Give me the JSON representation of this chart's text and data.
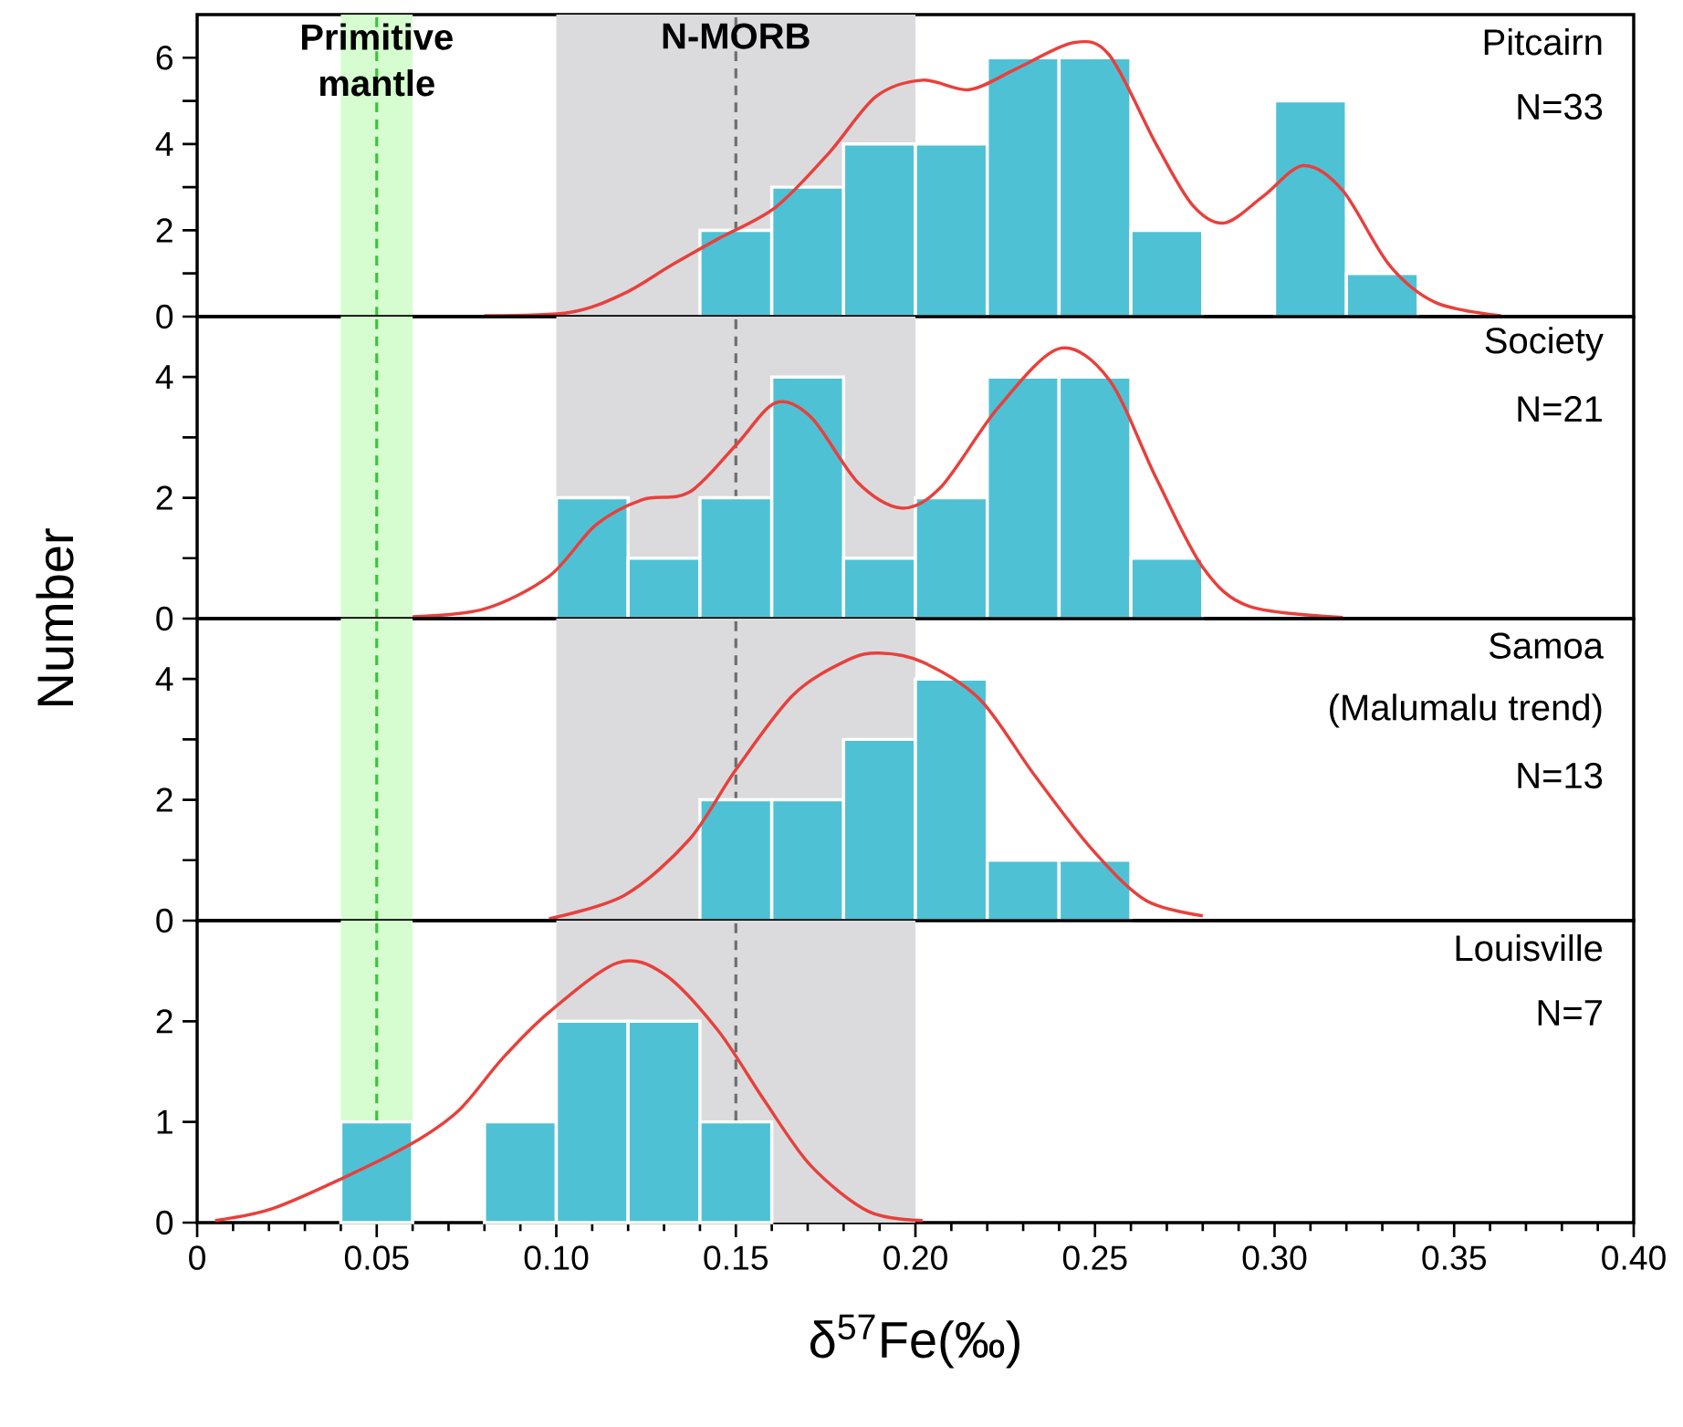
{
  "chart_data": [
    {
      "type": "histogram",
      "xlim": [
        0,
        0.4
      ],
      "ylim": [
        0,
        7
      ],
      "yticks": [
        0,
        {
          "value": 1,
          "label": null
        },
        2,
        {
          "value": 3,
          "label": null
        },
        4,
        {
          "value": 5,
          "label": null
        },
        6
      ],
      "tick_labels": "y",
      "series": [
        {
          "color": "#4fc1d5",
          "bins": [
            0.14,
            0.16,
            0.18,
            0.2,
            0.22,
            0.24,
            0.26,
            0.28,
            0.3,
            0.32,
            0.34
          ],
          "values": [
            2,
            3,
            4,
            4,
            6,
            6,
            2,
            0,
            5,
            1
          ]
        },
        {
          "type": "line",
          "color": "#e8403c",
          "line_style": "solid",
          "x": [
            0.08,
            0.104,
            0.119,
            0.132,
            0.145,
            0.161,
            0.176,
            0.189,
            0.202,
            0.215,
            0.228,
            0.244,
            0.254,
            0.267,
            0.277,
            0.286,
            0.297,
            0.308,
            0.319,
            0.332,
            0.345,
            0.363
          ],
          "values": [
            0.02,
            0.1,
            0.54,
            1.19,
            1.8,
            2.53,
            3.8,
            5.1,
            5.48,
            5.26,
            5.74,
            6.35,
            6.06,
            4.0,
            2.6,
            2.17,
            2.8,
            3.5,
            2.92,
            1.19,
            0.32,
            0.02
          ]
        }
      ],
      "bands": [
        {
          "axis": "x",
          "from": 0.04,
          "to": 0.06,
          "color": "#d6fdd0",
          "label": "Primitive mantle"
        },
        {
          "axis": "x",
          "from": 0.1,
          "to": 0.2,
          "color": "#dbdbdd",
          "label": "N-MORB"
        }
      ],
      "ref_lines": [
        {
          "axis": "x",
          "value": 0.05,
          "color": "#3cc43c",
          "line_style": "dashed"
        },
        {
          "axis": "x",
          "value": 0.15,
          "color": "#6e6e6e",
          "line_style": "dashed"
        }
      ],
      "annotations": [
        "Pitcairn",
        "N=33"
      ]
    },
    {
      "type": "histogram",
      "xlim": [
        0,
        0.4
      ],
      "ylim": [
        0,
        5
      ],
      "yticks": [
        0,
        {
          "value": 1,
          "label": null
        },
        2,
        {
          "value": 3,
          "label": null
        },
        4
      ],
      "tick_labels": "y",
      "ylabel": "Number",
      "series": [
        {
          "color": "#4fc1d5",
          "bins": [
            0.1,
            0.12,
            0.14,
            0.16,
            0.18,
            0.2,
            0.22,
            0.24,
            0.26,
            0.28
          ],
          "values": [
            2,
            1,
            2,
            4,
            1,
            2,
            4,
            4,
            1
          ]
        },
        {
          "type": "line",
          "color": "#e8403c",
          "line_style": "solid",
          "x": [
            0.06,
            0.08,
            0.098,
            0.111,
            0.124,
            0.137,
            0.15,
            0.161,
            0.171,
            0.184,
            0.196,
            0.207,
            0.223,
            0.24,
            0.254,
            0.267,
            0.28,
            0.293,
            0.319
          ],
          "values": [
            0.03,
            0.16,
            0.7,
            1.55,
            1.97,
            2.09,
            2.87,
            3.57,
            3.33,
            2.25,
            1.83,
            2.17,
            3.49,
            4.47,
            3.95,
            2.33,
            0.85,
            0.2,
            0.02
          ]
        }
      ],
      "bands": [
        {
          "axis": "x",
          "from": 0.04,
          "to": 0.06,
          "color": "#d6fdd0"
        },
        {
          "axis": "x",
          "from": 0.1,
          "to": 0.2,
          "color": "#dbdbdd"
        }
      ],
      "ref_lines": [
        {
          "axis": "x",
          "value": 0.05,
          "color": "#3cc43c",
          "line_style": "dashed"
        },
        {
          "axis": "x",
          "value": 0.15,
          "color": "#6e6e6e",
          "line_style": "dashed"
        }
      ],
      "annotations": [
        "Society",
        "N=21"
      ]
    },
    {
      "type": "histogram",
      "xlim": [
        0,
        0.4
      ],
      "ylim": [
        0,
        5
      ],
      "yticks": [
        0,
        {
          "value": 1,
          "label": null
        },
        2,
        {
          "value": 3,
          "label": null
        },
        4
      ],
      "tick_labels": "y",
      "series": [
        {
          "color": "#4fc1d5",
          "bins": [
            0.14,
            0.16,
            0.18,
            0.2,
            0.22,
            0.24,
            0.26
          ],
          "values": [
            2,
            2,
            3,
            4,
            1,
            1
          ]
        },
        {
          "type": "line",
          "color": "#e8403c",
          "line_style": "solid",
          "x": [
            0.098,
            0.119,
            0.137,
            0.15,
            0.166,
            0.181,
            0.19,
            0.202,
            0.218,
            0.233,
            0.249,
            0.264,
            0.28
          ],
          "values": [
            0.03,
            0.42,
            1.34,
            2.5,
            3.74,
            4.31,
            4.43,
            4.28,
            3.66,
            2.42,
            1.19,
            0.34,
            0.08
          ]
        }
      ],
      "bands": [
        {
          "axis": "x",
          "from": 0.04,
          "to": 0.06,
          "color": "#d6fdd0"
        },
        {
          "axis": "x",
          "from": 0.1,
          "to": 0.2,
          "color": "#dbdbdd"
        }
      ],
      "ref_lines": [
        {
          "axis": "x",
          "value": 0.05,
          "color": "#3cc43c",
          "line_style": "dashed"
        },
        {
          "axis": "x",
          "value": 0.15,
          "color": "#6e6e6e",
          "line_style": "dashed"
        }
      ],
      "annotations": [
        "Samoa",
        "(Malumalu trend)",
        "N=13"
      ]
    },
    {
      "type": "histogram",
      "xlim": [
        0,
        0.4
      ],
      "ylim": [
        0,
        3
      ],
      "yticks": [
        0,
        1,
        2
      ],
      "xlabel": "δ$^{57}$Fe(‰)",
      "xticks": [
        0,
        {
          "value": 0.01,
          "label": null
        },
        {
          "value": 0.02,
          "label": null
        },
        {
          "value": 0.03,
          "label": null
        },
        {
          "value": 0.04,
          "label": null
        },
        0.05,
        {
          "value": 0.06,
          "label": null
        },
        {
          "value": 0.07,
          "label": null
        },
        {
          "value": 0.08,
          "label": null
        },
        {
          "value": 0.09,
          "label": null
        },
        {
          "value": 0.1,
          "label": "0.10"
        },
        {
          "value": 0.11,
          "label": null
        },
        {
          "value": 0.12,
          "label": null
        },
        {
          "value": 0.13,
          "label": null
        },
        {
          "value": 0.14,
          "label": null
        },
        0.15,
        {
          "value": 0.16,
          "label": null
        },
        {
          "value": 0.17,
          "label": null
        },
        {
          "value": 0.18,
          "label": null
        },
        {
          "value": 0.19,
          "label": null
        },
        {
          "value": 0.2,
          "label": "0.20"
        },
        {
          "value": 0.21,
          "label": null
        },
        {
          "value": 0.22,
          "label": null
        },
        {
          "value": 0.23,
          "label": null
        },
        {
          "value": 0.24,
          "label": null
        },
        0.25,
        {
          "value": 0.26,
          "label": null
        },
        {
          "value": 0.27,
          "label": null
        },
        {
          "value": 0.28,
          "label": null
        },
        {
          "value": 0.29,
          "label": null
        },
        {
          "value": 0.3,
          "label": "0.30"
        },
        {
          "value": 0.31,
          "label": null
        },
        {
          "value": 0.32,
          "label": null
        },
        {
          "value": 0.33,
          "label": null
        },
        {
          "value": 0.34,
          "label": null
        },
        0.35,
        {
          "value": 0.36,
          "label": null
        },
        {
          "value": 0.37,
          "label": null
        },
        {
          "value": 0.38,
          "label": null
        },
        {
          "value": 0.39,
          "label": null
        },
        {
          "value": 0.4,
          "label": "0.40"
        }
      ],
      "series": [
        {
          "color": "#4fc1d5",
          "bins": [
            0.04,
            0.06,
            0.08,
            0.1,
            0.12,
            0.14,
            0.16
          ],
          "values": [
            1,
            0,
            1,
            2,
            2,
            1
          ]
        },
        {
          "type": "line",
          "color": "#e8403c",
          "line_style": "solid",
          "x": [
            0.005,
            0.021,
            0.041,
            0.06,
            0.073,
            0.085,
            0.098,
            0.117,
            0.13,
            0.145,
            0.158,
            0.171,
            0.187,
            0.202
          ],
          "values": [
            0.02,
            0.14,
            0.45,
            0.79,
            1.12,
            1.63,
            2.09,
            2.58,
            2.47,
            1.91,
            1.21,
            0.56,
            0.11,
            0.02
          ]
        }
      ],
      "bands": [
        {
          "axis": "x",
          "from": 0.04,
          "to": 0.06,
          "color": "#d6fdd0"
        },
        {
          "axis": "x",
          "from": 0.1,
          "to": 0.2,
          "color": "#dbdbdd"
        }
      ],
      "ref_lines": [
        {
          "axis": "x",
          "value": 0.05,
          "color": "#3cc43c",
          "line_style": "dashed"
        },
        {
          "axis": "x",
          "value": 0.15,
          "color": "#6e6e6e",
          "line_style": "dashed"
        }
      ],
      "annotations": [
        "Louisville",
        "N=7"
      ]
    }
  ]
}
